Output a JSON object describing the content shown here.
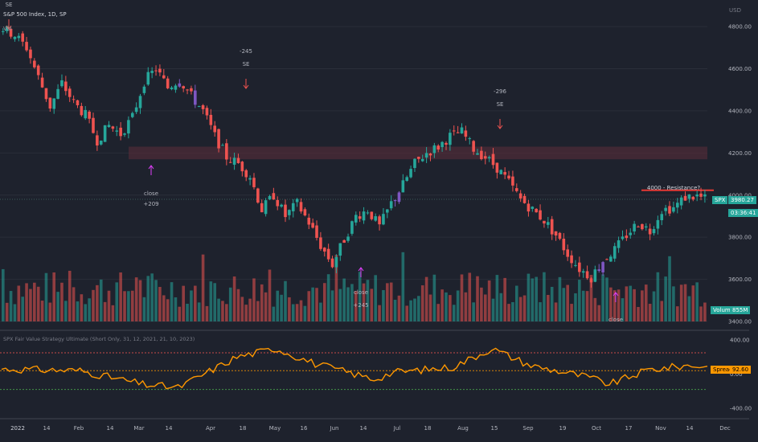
{
  "header": {
    "symbol_line": "S&P 500 Index, 1D, SP",
    "vol_label": "Vol",
    "indicator_line": "SPX Fair Value Strategy Ultimate (Short Only, 31, 12, 2021, 21, 10, 2023)"
  },
  "price_axis": {
    "currency": "USD",
    "ticks": [
      "4800.00",
      "4600.00",
      "4400.00",
      "4200.00",
      "4000.00",
      "3800.00",
      "3600.00",
      "3400.00"
    ]
  },
  "spread_axis": {
    "ticks": [
      "400.00",
      "0.00",
      "-400.00"
    ]
  },
  "time_axis": {
    "ticks": [
      "2022",
      "14",
      "Feb",
      "14",
      "Mar",
      "14",
      "Apr",
      "18",
      "May",
      "16",
      "Jun",
      "14",
      "Jul",
      "18",
      "Aug",
      "15",
      "Sep",
      "19",
      "Oct",
      "17",
      "Nov",
      "14",
      "Dec"
    ]
  },
  "annotations": {
    "top_se": "SE",
    "apr_short_qty": "-245",
    "apr_short": "SE",
    "aug_short_qty": "-296",
    "aug_short": "SE",
    "mar_close": "close",
    "mar_close_qty": "+209",
    "jun_close": "close",
    "jun_close_qty": "+245",
    "oct_close": "close",
    "resistance_label": "4000 - Resistance?"
  },
  "price_tags": {
    "symbol": "SPX",
    "last_price": "3980.27",
    "countdown": "03:36:41",
    "volume_label": "Volume",
    "volume_value": "855M",
    "spread_label": "Spread",
    "spread_value": "92.60"
  },
  "colors": {
    "background": "#1e222d",
    "up": "#26a69a",
    "down": "#ef5350",
    "signal_bar": "#7e57c2",
    "spread_line": "#ff9800",
    "resistance_zone": "#5c2d3a",
    "resistance_line": "#e53935"
  },
  "chart_data": {
    "type": "candlestick",
    "period": "2022-01-03 to 2022-11-25",
    "y_range": [
      3400,
      4850
    ],
    "price_path": [
      [
        0,
        4790
      ],
      [
        3,
        4760
      ],
      [
        6,
        4700
      ],
      [
        9,
        4560
      ],
      [
        12,
        4420
      ],
      [
        15,
        4530
      ],
      [
        18,
        4440
      ],
      [
        21,
        4380
      ],
      [
        24,
        4260
      ],
      [
        27,
        4330
      ],
      [
        30,
        4290
      ],
      [
        33,
        4370
      ],
      [
        36,
        4540
      ],
      [
        39,
        4600
      ],
      [
        42,
        4510
      ],
      [
        45,
        4550
      ],
      [
        48,
        4470
      ],
      [
        51,
        4400
      ],
      [
        54,
        4280
      ],
      [
        57,
        4180
      ],
      [
        60,
        4150
      ],
      [
        63,
        4090
      ],
      [
        66,
        3930
      ],
      [
        69,
        4000
      ],
      [
        72,
        3900
      ],
      [
        75,
        3960
      ],
      [
        78,
        3870
      ],
      [
        81,
        3760
      ],
      [
        84,
        3670
      ],
      [
        87,
        3790
      ],
      [
        90,
        3900
      ],
      [
        93,
        3930
      ],
      [
        96,
        3850
      ],
      [
        99,
        3960
      ],
      [
        102,
        4050
      ],
      [
        105,
        4150
      ],
      [
        108,
        4200
      ],
      [
        111,
        4230
      ],
      [
        114,
        4280
      ],
      [
        117,
        4300
      ],
      [
        120,
        4220
      ],
      [
        123,
        4180
      ],
      [
        126,
        4130
      ],
      [
        129,
        4060
      ],
      [
        132,
        3980
      ],
      [
        135,
        3930
      ],
      [
        138,
        3880
      ],
      [
        141,
        3810
      ],
      [
        144,
        3720
      ],
      [
        147,
        3650
      ],
      [
        150,
        3610
      ],
      [
        153,
        3690
      ],
      [
        156,
        3740
      ],
      [
        159,
        3810
      ],
      [
        162,
        3870
      ],
      [
        165,
        3830
      ],
      [
        168,
        3930
      ],
      [
        171,
        3940
      ],
      [
        174,
        3990
      ],
      [
        177,
        3995
      ],
      [
        180,
        3975
      ]
    ],
    "volume_relative": "bars at bottom of price pane, mixed up/down coloring",
    "spread": {
      "y_range": [
        -400,
        400
      ],
      "reference_lines": [
        250,
        40,
        -180
      ],
      "last": 92.6
    },
    "events": [
      {
        "date": "2022-01-04",
        "type": "SE"
      },
      {
        "date": "2022-03-08",
        "type": "close",
        "qty": 209
      },
      {
        "date": "2022-04-21",
        "type": "SE",
        "qty": -245
      },
      {
        "date": "2022-06-13",
        "type": "close",
        "qty": 245
      },
      {
        "date": "2022-08-16",
        "type": "SE",
        "qty": -296
      },
      {
        "date": "2022-10-13",
        "type": "close"
      }
    ],
    "resistance_zone": [
      4170,
      4230
    ],
    "resistance_line": 4000
  }
}
